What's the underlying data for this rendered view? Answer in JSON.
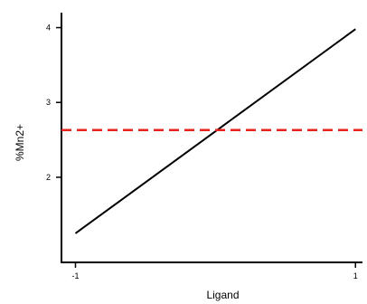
{
  "chart_data": {
    "type": "line",
    "xlabel": "Ligand",
    "ylabel": "%Mn2+",
    "xlim": [
      -1.1,
      1.05
    ],
    "ylim": [
      0.85,
      4.2
    ],
    "x_ticks": [
      -1,
      1
    ],
    "x_tick_labels": [
      "-1",
      "1"
    ],
    "y_ticks": [
      2,
      3,
      4
    ],
    "y_tick_labels": [
      "2",
      "3",
      "4"
    ],
    "grid": false,
    "series": [
      {
        "style": "solid",
        "color": "#000000",
        "x": [
          -1,
          1
        ],
        "y": [
          1.25,
          3.98
        ]
      },
      {
        "style": "dashed",
        "color": "#e8231f",
        "x": [
          -1.1,
          1.05
        ],
        "y": [
          2.63,
          2.63
        ]
      }
    ]
  }
}
